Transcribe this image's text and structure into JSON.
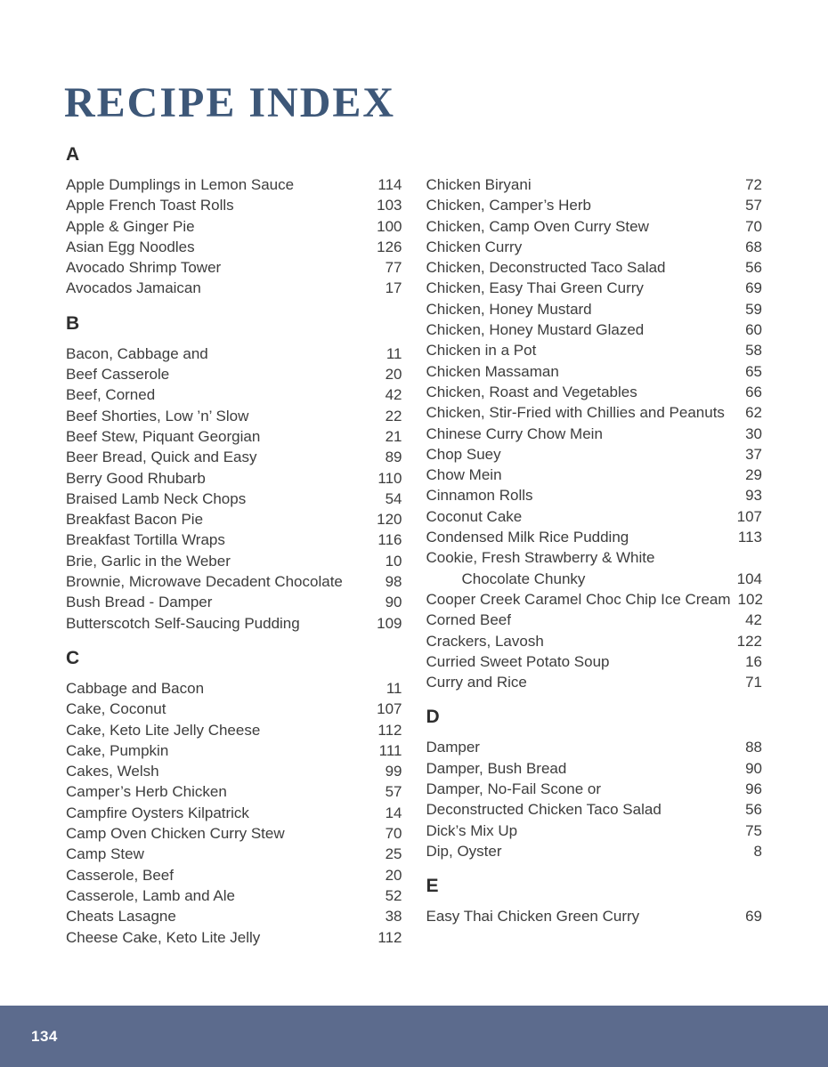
{
  "page": {
    "title": "RECIPE INDEX",
    "footer": {
      "page_number": "134"
    }
  },
  "colors": {
    "title": "#3d5778",
    "heading": "#2e2e2e",
    "text": "#3d3d3d",
    "footer_bg": "#5c6b8d",
    "footer_text": "#ffffff"
  },
  "columns": [
    {
      "blocks": [
        {
          "type": "header",
          "letter": "A"
        },
        {
          "type": "item",
          "name": "Apple Dumplings in Lemon Sauce",
          "page": "114"
        },
        {
          "type": "item",
          "name": "Apple French Toast Rolls",
          "page": "103"
        },
        {
          "type": "item",
          "name": "Apple & Ginger Pie",
          "page": "100"
        },
        {
          "type": "item",
          "name": "Asian Egg Noodles",
          "page": "126"
        },
        {
          "type": "item",
          "name": "Avocado Shrimp Tower",
          "page": "77"
        },
        {
          "type": "item",
          "name": "Avocados Jamaican",
          "page": "17"
        },
        {
          "type": "header",
          "letter": "B"
        },
        {
          "type": "item",
          "name": "Bacon, Cabbage and",
          "page": "11"
        },
        {
          "type": "item",
          "name": "Beef Casserole",
          "page": "20"
        },
        {
          "type": "item",
          "name": "Beef, Corned",
          "page": "42"
        },
        {
          "type": "item",
          "name": "Beef Shorties, Low ’n’ Slow",
          "page": "22"
        },
        {
          "type": "item",
          "name": "Beef Stew, Piquant Georgian",
          "page": "21"
        },
        {
          "type": "item",
          "name": "Beer Bread, Quick and Easy",
          "page": "89"
        },
        {
          "type": "item",
          "name": "Berry Good Rhubarb",
          "page": "110"
        },
        {
          "type": "item",
          "name": "Braised Lamb Neck Chops",
          "page": "54"
        },
        {
          "type": "item",
          "name": "Breakfast Bacon Pie",
          "page": "120"
        },
        {
          "type": "item",
          "name": "Breakfast Tortilla Wraps",
          "page": "116"
        },
        {
          "type": "item",
          "name": "Brie, Garlic in the Weber",
          "page": "10"
        },
        {
          "type": "item",
          "name": "Brownie, Microwave Decadent Chocolate",
          "page": "98"
        },
        {
          "type": "item",
          "name": "Bush Bread - Damper",
          "page": "90"
        },
        {
          "type": "item",
          "name": "Butterscotch Self-Saucing Pudding",
          "page": "109"
        },
        {
          "type": "header",
          "letter": "C"
        },
        {
          "type": "item",
          "name": "Cabbage and Bacon",
          "page": "11"
        },
        {
          "type": "item",
          "name": "Cake, Coconut",
          "page": "107"
        },
        {
          "type": "item",
          "name": "Cake, Keto Lite Jelly Cheese",
          "page": "112"
        },
        {
          "type": "item",
          "name": "Cake, Pumpkin",
          "page": "111"
        },
        {
          "type": "item",
          "name": "Cakes, Welsh",
          "page": "99"
        },
        {
          "type": "item",
          "name": "Camper’s Herb Chicken",
          "page": "57"
        },
        {
          "type": "item",
          "name": "Campfire Oysters Kilpatrick",
          "page": "14"
        },
        {
          "type": "item",
          "name": "Camp Oven Chicken Curry Stew",
          "page": "70"
        },
        {
          "type": "item",
          "name": "Camp Stew",
          "page": "25"
        },
        {
          "type": "item",
          "name": "Casserole, Beef",
          "page": "20"
        },
        {
          "type": "item",
          "name": "Casserole, Lamb and Ale",
          "page": "52"
        },
        {
          "type": "item",
          "name": "Cheats Lasagne",
          "page": "38"
        },
        {
          "type": "item",
          "name": "Cheese Cake, Keto Lite Jelly",
          "page": "112"
        }
      ]
    },
    {
      "blocks": [
        {
          "type": "item",
          "name": "Chicken Biryani",
          "page": "72"
        },
        {
          "type": "item",
          "name": "Chicken, Camper’s Herb",
          "page": "57"
        },
        {
          "type": "item",
          "name": "Chicken, Camp Oven Curry Stew",
          "page": "70"
        },
        {
          "type": "item",
          "name": "Chicken Curry",
          "page": "68"
        },
        {
          "type": "item",
          "name": "Chicken, Deconstructed Taco Salad",
          "page": "56"
        },
        {
          "type": "item",
          "name": "Chicken, Easy Thai Green Curry",
          "page": "69"
        },
        {
          "type": "item",
          "name": "Chicken, Honey Mustard",
          "page": "59"
        },
        {
          "type": "item",
          "name": "Chicken, Honey Mustard Glazed",
          "page": "60"
        },
        {
          "type": "item",
          "name": "Chicken in a Pot",
          "page": "58"
        },
        {
          "type": "item",
          "name": "Chicken Massaman",
          "page": "65"
        },
        {
          "type": "item",
          "name": "Chicken, Roast and Vegetables",
          "page": "66"
        },
        {
          "type": "item",
          "name": "Chicken, Stir-Fried with Chillies and Peanuts",
          "page": "62"
        },
        {
          "type": "item",
          "name": "Chinese Curry Chow Mein",
          "page": "30"
        },
        {
          "type": "item",
          "name": "Chop Suey",
          "page": "37"
        },
        {
          "type": "item",
          "name": "Chow Mein",
          "page": "29"
        },
        {
          "type": "item",
          "name": "Cinnamon Rolls",
          "page": "93"
        },
        {
          "type": "item",
          "name": "Coconut Cake",
          "page": "107"
        },
        {
          "type": "item",
          "name": "Condensed Milk Rice Pudding",
          "page": "113"
        },
        {
          "type": "item",
          "name": "Cookie, Fresh Strawberry & White",
          "page": ""
        },
        {
          "type": "item",
          "name": "Chocolate Chunky",
          "page": "104",
          "indent": true
        },
        {
          "type": "item",
          "name": "Cooper Creek Caramel Choc Chip Ice Cream",
          "page": "102"
        },
        {
          "type": "item",
          "name": "Corned Beef",
          "page": "42"
        },
        {
          "type": "item",
          "name": "Crackers, Lavosh",
          "page": "122"
        },
        {
          "type": "item",
          "name": "Curried Sweet Potato Soup",
          "page": "16"
        },
        {
          "type": "item",
          "name": "Curry and Rice",
          "page": "71"
        },
        {
          "type": "header",
          "letter": "D"
        },
        {
          "type": "item",
          "name": "Damper",
          "page": "88"
        },
        {
          "type": "item",
          "name": "Damper, Bush Bread",
          "page": "90"
        },
        {
          "type": "item",
          "name": "Damper, No-Fail Scone or",
          "page": "96"
        },
        {
          "type": "item",
          "name": "Deconstructed Chicken Taco Salad",
          "page": "56"
        },
        {
          "type": "item",
          "name": "Dick’s Mix Up",
          "page": "75"
        },
        {
          "type": "item",
          "name": "Dip, Oyster",
          "page": "8"
        },
        {
          "type": "header",
          "letter": "E"
        },
        {
          "type": "item",
          "name": "Easy Thai Chicken Green Curry",
          "page": "69"
        }
      ]
    }
  ]
}
